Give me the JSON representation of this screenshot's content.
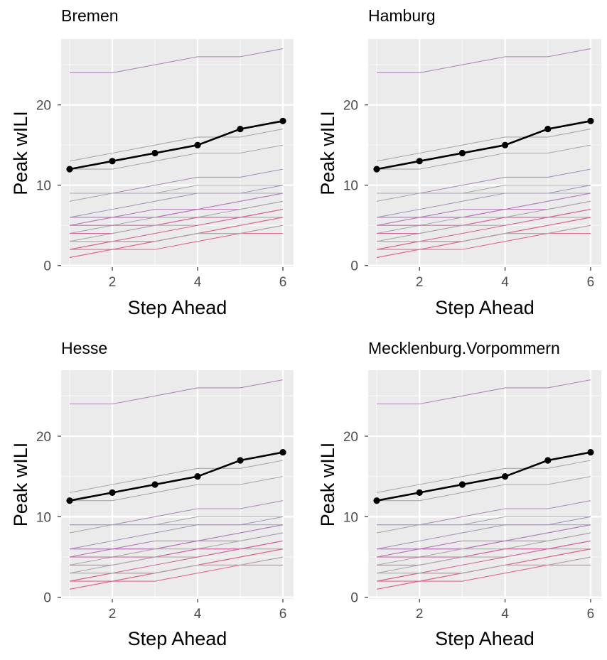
{
  "chart_data": [
    {
      "type": "line",
      "title": "Bremen",
      "xlabel": "Step Ahead",
      "ylabel": "Peak wILI",
      "x": [
        1,
        2,
        3,
        4,
        5,
        6
      ],
      "xticks": [
        2,
        4,
        6
      ],
      "yticks": [
        0,
        10,
        20
      ],
      "xlim": [
        0.8,
        6.25
      ],
      "ylim": [
        -0.2,
        28.2
      ],
      "grid": true,
      "highlight": {
        "values": [
          12,
          13,
          14,
          15,
          17,
          18
        ],
        "color": "#000000"
      },
      "series": [
        {
          "values": [
            24,
            24,
            25,
            26,
            26,
            27
          ],
          "color": "#a98ab8"
        },
        {
          "values": [
            13,
            14,
            15,
            16,
            16,
            17
          ],
          "color": "#aaaaaa"
        },
        {
          "values": [
            12,
            12,
            13,
            14,
            14,
            15
          ],
          "color": "#aaaaaa"
        },
        {
          "values": [
            9,
            9,
            10,
            11,
            11,
            12
          ],
          "color": "#aa8fb8"
        },
        {
          "values": [
            8,
            9,
            9,
            10,
            10,
            10
          ],
          "color": "#aaaaaa"
        },
        {
          "values": [
            9,
            9,
            9,
            9,
            9,
            9
          ],
          "color": "#a7a7b8"
        },
        {
          "values": [
            6,
            7,
            8,
            9,
            9,
            10
          ],
          "color": "#a898b8"
        },
        {
          "values": [
            6,
            6,
            7,
            7,
            8,
            9
          ],
          "color": "#b07ab8"
        },
        {
          "values": [
            6,
            6,
            6,
            7,
            8,
            9
          ],
          "color": "#b485bd"
        },
        {
          "values": [
            5,
            6,
            6,
            7,
            7,
            8
          ],
          "color": "#bc70b8"
        },
        {
          "values": [
            4,
            5,
            6,
            6,
            7,
            8
          ],
          "color": "#aaaaaa"
        },
        {
          "values": [
            5,
            5,
            5,
            6,
            6,
            7
          ],
          "color": "#c770a8"
        },
        {
          "values": [
            4,
            4,
            5,
            6,
            6,
            7
          ],
          "color": "#d265a0"
        },
        {
          "values": [
            3,
            4,
            5,
            5,
            6,
            6
          ],
          "color": "#aaaaaa"
        },
        {
          "values": [
            2,
            3,
            4,
            5,
            6,
            7
          ],
          "color": "#d6689c"
        },
        {
          "values": [
            2,
            3,
            3,
            4,
            5,
            6
          ],
          "color": "#dc6490"
        },
        {
          "values": [
            1,
            2,
            3,
            4,
            5,
            6
          ],
          "color": "#e0648e"
        },
        {
          "values": [
            1,
            2,
            2,
            3,
            4,
            5
          ],
          "color": "#e2679a"
        },
        {
          "values": [
            2,
            2,
            3,
            4,
            4,
            4
          ],
          "color": "#e06a90"
        },
        {
          "values": [
            3,
            3,
            3,
            4,
            4,
            5
          ],
          "color": "#aaaaaa"
        }
      ]
    },
    {
      "type": "line",
      "title": "Hamburg",
      "xlabel": "Step Ahead",
      "ylabel": "Peak wILI",
      "x": [
        1,
        2,
        3,
        4,
        5,
        6
      ],
      "xticks": [
        2,
        4,
        6
      ],
      "yticks": [
        0,
        10,
        20
      ],
      "xlim": [
        0.8,
        6.25
      ],
      "ylim": [
        -0.2,
        28.2
      ],
      "grid": true,
      "highlight": {
        "values": [
          12,
          13,
          14,
          15,
          17,
          18
        ],
        "color": "#000000"
      },
      "series": [
        {
          "values": [
            24,
            24,
            25,
            26,
            26,
            27
          ],
          "color": "#a98ab8"
        },
        {
          "values": [
            13,
            14,
            15,
            16,
            16,
            17
          ],
          "color": "#aaaaaa"
        },
        {
          "values": [
            12,
            12,
            13,
            14,
            14,
            15
          ],
          "color": "#aaaaaa"
        },
        {
          "values": [
            9,
            9,
            10,
            11,
            11,
            12
          ],
          "color": "#aa8fb8"
        },
        {
          "values": [
            8,
            9,
            9,
            10,
            10,
            10
          ],
          "color": "#aaaaaa"
        },
        {
          "values": [
            9,
            9,
            9,
            9,
            9,
            9
          ],
          "color": "#a7a7b8"
        },
        {
          "values": [
            6,
            7,
            8,
            9,
            9,
            10
          ],
          "color": "#a898b8"
        },
        {
          "values": [
            6,
            6,
            7,
            7,
            8,
            9
          ],
          "color": "#b07ab8"
        },
        {
          "values": [
            6,
            6,
            6,
            7,
            8,
            9
          ],
          "color": "#b485bd"
        },
        {
          "values": [
            5,
            6,
            6,
            7,
            7,
            8
          ],
          "color": "#bc70b8"
        },
        {
          "values": [
            4,
            5,
            6,
            6,
            7,
            8
          ],
          "color": "#aaaaaa"
        },
        {
          "values": [
            5,
            5,
            5,
            6,
            6,
            7
          ],
          "color": "#c770a8"
        },
        {
          "values": [
            4,
            4,
            5,
            6,
            6,
            7
          ],
          "color": "#d265a0"
        },
        {
          "values": [
            3,
            4,
            5,
            5,
            6,
            6
          ],
          "color": "#aaaaaa"
        },
        {
          "values": [
            2,
            3,
            4,
            5,
            6,
            7
          ],
          "color": "#d6689c"
        },
        {
          "values": [
            2,
            3,
            3,
            4,
            5,
            6
          ],
          "color": "#dc6490"
        },
        {
          "values": [
            1,
            2,
            3,
            4,
            5,
            6
          ],
          "color": "#e0648e"
        },
        {
          "values": [
            1,
            2,
            2,
            3,
            4,
            5
          ],
          "color": "#e2679a"
        },
        {
          "values": [
            2,
            2,
            3,
            4,
            4,
            4
          ],
          "color": "#e06a90"
        },
        {
          "values": [
            3,
            3,
            3,
            4,
            4,
            5
          ],
          "color": "#aaaaaa"
        }
      ]
    },
    {
      "type": "line",
      "title": "Hesse",
      "xlabel": "Step Ahead",
      "ylabel": "Peak wILI",
      "x": [
        1,
        2,
        3,
        4,
        5,
        6
      ],
      "xticks": [
        2,
        4,
        6
      ],
      "yticks": [
        0,
        10,
        20
      ],
      "xlim": [
        0.8,
        6.25
      ],
      "ylim": [
        -0.2,
        28.2
      ],
      "grid": true,
      "highlight": {
        "values": [
          12,
          13,
          14,
          15,
          17,
          18
        ],
        "color": "#000000"
      },
      "series": [
        {
          "values": [
            24,
            24,
            25,
            26,
            26,
            27
          ],
          "color": "#a98ab8"
        },
        {
          "values": [
            13,
            14,
            15,
            16,
            16,
            17
          ],
          "color": "#aaaaaa"
        },
        {
          "values": [
            12,
            12,
            13,
            14,
            14,
            15
          ],
          "color": "#aaaaaa"
        },
        {
          "values": [
            9,
            9,
            10,
            11,
            11,
            12
          ],
          "color": "#aa8fb8"
        },
        {
          "values": [
            8,
            9,
            9,
            10,
            10,
            10
          ],
          "color": "#aaaaaa"
        },
        {
          "values": [
            9,
            9,
            9,
            9,
            9,
            9
          ],
          "color": "#a7a7b8"
        },
        {
          "values": [
            6,
            7,
            8,
            9,
            9,
            10
          ],
          "color": "#a898b8"
        },
        {
          "values": [
            6,
            6,
            7,
            7,
            8,
            9
          ],
          "color": "#b07ab8"
        },
        {
          "values": [
            6,
            6,
            6,
            7,
            8,
            9
          ],
          "color": "#b485bd"
        },
        {
          "values": [
            5,
            6,
            6,
            7,
            7,
            8
          ],
          "color": "#bc70b8"
        },
        {
          "values": [
            4,
            5,
            6,
            6,
            7,
            8
          ],
          "color": "#aaaaaa"
        },
        {
          "values": [
            5,
            5,
            5,
            6,
            6,
            7
          ],
          "color": "#c770a8"
        },
        {
          "values": [
            4,
            4,
            5,
            6,
            6,
            7
          ],
          "color": "#d265a0"
        },
        {
          "values": [
            3,
            4,
            5,
            5,
            6,
            6
          ],
          "color": "#aaaaaa"
        },
        {
          "values": [
            2,
            3,
            4,
            5,
            6,
            7
          ],
          "color": "#d6689c"
        },
        {
          "values": [
            2,
            3,
            3,
            4,
            5,
            6
          ],
          "color": "#dc6490"
        },
        {
          "values": [
            1,
            2,
            3,
            4,
            5,
            6
          ],
          "color": "#e0648e"
        },
        {
          "values": [
            1,
            2,
            2,
            3,
            4,
            5
          ],
          "color": "#e2679a"
        },
        {
          "values": [
            2,
            2,
            3,
            4,
            4,
            4
          ],
          "color": "#e06a90"
        },
        {
          "values": [
            3,
            3,
            3,
            4,
            4,
            5
          ],
          "color": "#aaaaaa"
        }
      ]
    },
    {
      "type": "line",
      "title": "Mecklenburg.Vorpommern",
      "xlabel": "Step Ahead",
      "ylabel": "Peak wILI",
      "x": [
        1,
        2,
        3,
        4,
        5,
        6
      ],
      "xticks": [
        2,
        4,
        6
      ],
      "yticks": [
        0,
        10,
        20
      ],
      "xlim": [
        0.8,
        6.25
      ],
      "ylim": [
        -0.2,
        28.2
      ],
      "grid": true,
      "highlight": {
        "values": [
          12,
          13,
          14,
          15,
          17,
          18
        ],
        "color": "#000000"
      },
      "series": [
        {
          "values": [
            24,
            24,
            25,
            26,
            26,
            27
          ],
          "color": "#a98ab8"
        },
        {
          "values": [
            13,
            14,
            15,
            16,
            16,
            17
          ],
          "color": "#aaaaaa"
        },
        {
          "values": [
            12,
            12,
            13,
            14,
            14,
            15
          ],
          "color": "#aaaaaa"
        },
        {
          "values": [
            9,
            9,
            10,
            11,
            11,
            12
          ],
          "color": "#aa8fb8"
        },
        {
          "values": [
            8,
            9,
            9,
            10,
            10,
            10
          ],
          "color": "#aaaaaa"
        },
        {
          "values": [
            9,
            9,
            9,
            9,
            9,
            9
          ],
          "color": "#a7a7b8"
        },
        {
          "values": [
            6,
            7,
            8,
            9,
            9,
            10
          ],
          "color": "#a898b8"
        },
        {
          "values": [
            6,
            6,
            7,
            7,
            8,
            9
          ],
          "color": "#b07ab8"
        },
        {
          "values": [
            6,
            6,
            6,
            7,
            8,
            9
          ],
          "color": "#b485bd"
        },
        {
          "values": [
            5,
            6,
            6,
            7,
            7,
            8
          ],
          "color": "#bc70b8"
        },
        {
          "values": [
            4,
            5,
            6,
            6,
            7,
            8
          ],
          "color": "#aaaaaa"
        },
        {
          "values": [
            5,
            5,
            5,
            6,
            6,
            7
          ],
          "color": "#c770a8"
        },
        {
          "values": [
            4,
            4,
            5,
            6,
            6,
            7
          ],
          "color": "#d265a0"
        },
        {
          "values": [
            3,
            4,
            5,
            5,
            6,
            6
          ],
          "color": "#aaaaaa"
        },
        {
          "values": [
            2,
            3,
            4,
            5,
            6,
            7
          ],
          "color": "#d6689c"
        },
        {
          "values": [
            2,
            3,
            3,
            4,
            5,
            6
          ],
          "color": "#dc6490"
        },
        {
          "values": [
            1,
            2,
            3,
            4,
            5,
            6
          ],
          "color": "#e0648e"
        },
        {
          "values": [
            1,
            2,
            2,
            3,
            4,
            5
          ],
          "color": "#e2679a"
        },
        {
          "values": [
            2,
            2,
            3,
            4,
            4,
            4
          ],
          "color": "#e06a90"
        },
        {
          "values": [
            3,
            3,
            3,
            4,
            4,
            5
          ],
          "color": "#aaaaaa"
        }
      ]
    }
  ]
}
